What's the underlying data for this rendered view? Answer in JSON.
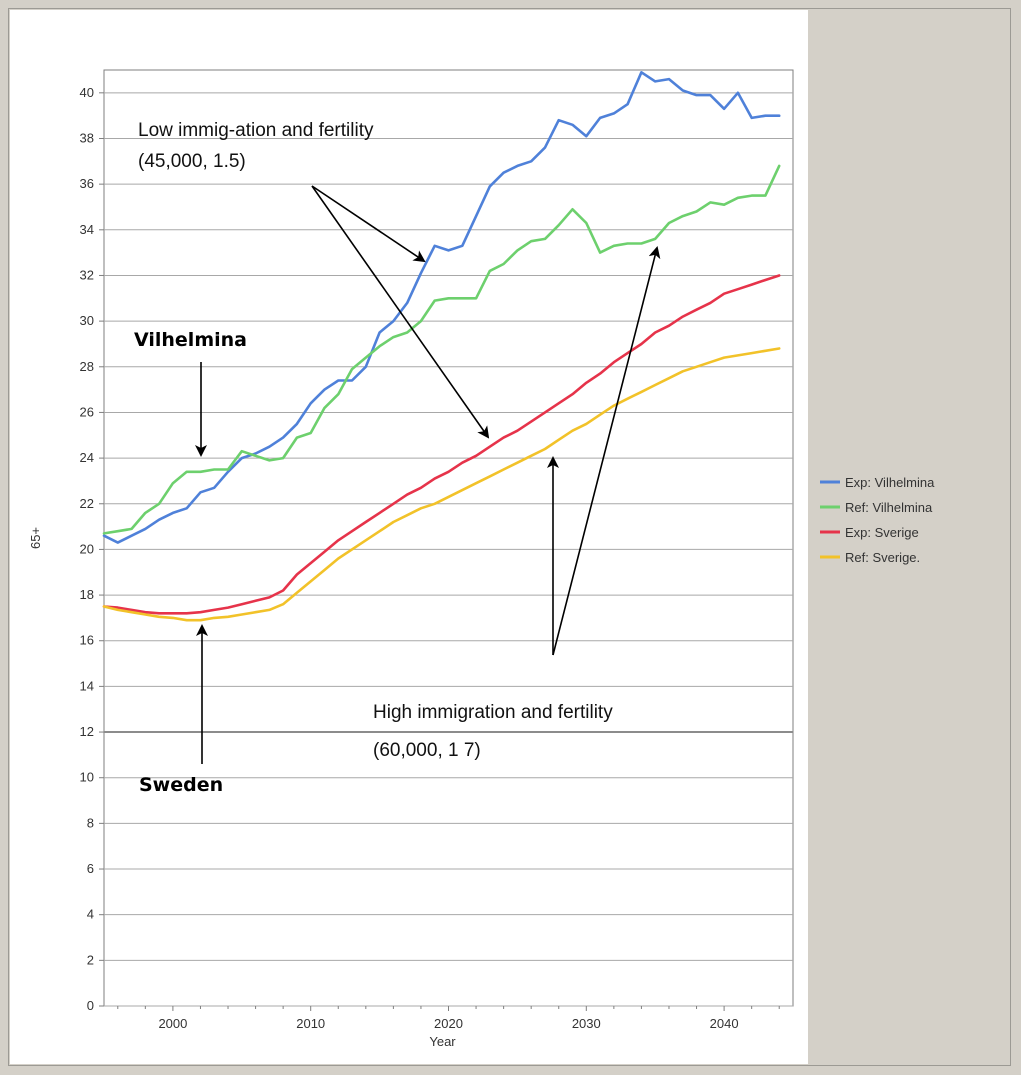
{
  "chart_data": {
    "type": "line",
    "xlabel": "Year",
    "ylabel": "65+",
    "xlim": [
      1995,
      2045
    ],
    "ylim": [
      0,
      41
    ],
    "grid": true,
    "legend_position": "right",
    "x_ticks": [
      2000,
      2010,
      2020,
      2030,
      2040
    ],
    "y_ticks": [
      0,
      2,
      4,
      6,
      8,
      10,
      12,
      14,
      16,
      18,
      20,
      22,
      24,
      26,
      28,
      30,
      32,
      34,
      36,
      38,
      40
    ],
    "x": [
      1995,
      1996,
      1997,
      1998,
      1999,
      2000,
      2001,
      2002,
      2003,
      2004,
      2005,
      2006,
      2007,
      2008,
      2009,
      2010,
      2011,
      2012,
      2013,
      2014,
      2015,
      2016,
      2017,
      2018,
      2019,
      2020,
      2021,
      2022,
      2023,
      2024,
      2025,
      2026,
      2027,
      2028,
      2029,
      2030,
      2031,
      2032,
      2033,
      2034,
      2035,
      2036,
      2037,
      2038,
      2039,
      2040,
      2041,
      2042,
      2043,
      2044
    ],
    "series": [
      {
        "name": "Exp: Vilhelmina",
        "color": "#4f81d9",
        "values": [
          20.6,
          20.3,
          20.6,
          20.9,
          21.3,
          21.6,
          21.8,
          22.5,
          22.7,
          23.4,
          24.0,
          24.2,
          24.5,
          24.9,
          25.5,
          26.4,
          27.0,
          27.4,
          27.4,
          28.0,
          29.5,
          30.0,
          30.8,
          32.1,
          33.3,
          33.1,
          33.3,
          34.6,
          35.9,
          36.5,
          36.8,
          37.0,
          37.6,
          38.8,
          38.6,
          38.1,
          38.9,
          39.1,
          39.5,
          40.9,
          40.5,
          40.6,
          40.1,
          39.9,
          39.9,
          39.3,
          40.0,
          38.9,
          39.0,
          39.0
        ]
      },
      {
        "name": "Ref: Vilhelmina",
        "color": "#6dd06d",
        "values": [
          20.7,
          20.8,
          20.9,
          21.6,
          22.0,
          22.9,
          23.4,
          23.4,
          23.5,
          23.5,
          24.3,
          24.1,
          23.9,
          24.0,
          24.9,
          25.1,
          26.2,
          26.8,
          27.9,
          28.4,
          28.9,
          29.3,
          29.5,
          30.0,
          30.9,
          31.0,
          31.0,
          31.0,
          32.2,
          32.5,
          33.1,
          33.5,
          33.6,
          34.2,
          34.9,
          34.3,
          33.0,
          33.3,
          33.4,
          33.4,
          33.6,
          34.3,
          34.6,
          34.8,
          35.2,
          35.1,
          35.4,
          35.5,
          35.5,
          36.8
        ]
      },
      {
        "name": "Exp: Sverige",
        "color": "#e6334a",
        "values": [
          17.5,
          17.45,
          17.35,
          17.25,
          17.2,
          17.2,
          17.2,
          17.25,
          17.35,
          17.45,
          17.6,
          17.75,
          17.9,
          18.2,
          18.9,
          19.4,
          19.9,
          20.4,
          20.8,
          21.2,
          21.6,
          22.0,
          22.4,
          22.7,
          23.1,
          23.4,
          23.8,
          24.1,
          24.5,
          24.9,
          25.2,
          25.6,
          26.0,
          26.4,
          26.8,
          27.3,
          27.7,
          28.2,
          28.6,
          29.0,
          29.5,
          29.8,
          30.2,
          30.5,
          30.8,
          31.2,
          31.4,
          31.6,
          31.8,
          32.0
        ]
      },
      {
        "name": "Ref: Sverige.",
        "color": "#f2c229",
        "values": [
          17.5,
          17.35,
          17.25,
          17.15,
          17.05,
          17.0,
          16.9,
          16.9,
          17.0,
          17.05,
          17.15,
          17.25,
          17.35,
          17.6,
          18.1,
          18.6,
          19.1,
          19.6,
          20.0,
          20.4,
          20.8,
          21.2,
          21.5,
          21.8,
          22.0,
          22.3,
          22.6,
          22.9,
          23.2,
          23.5,
          23.8,
          24.1,
          24.4,
          24.8,
          25.2,
          25.5,
          25.9,
          26.3,
          26.6,
          26.9,
          27.2,
          27.5,
          27.8,
          28.0,
          28.2,
          28.4,
          28.5,
          28.6,
          28.7,
          28.8
        ]
      }
    ],
    "annotations": [
      {
        "text": "Low immig-ation and fertility"
      },
      {
        "text": "(45,000, 1.5)"
      },
      {
        "text": "Vilhelmina"
      },
      {
        "text": "High immigration and fertility"
      },
      {
        "text": "(60,000, 1 7)"
      },
      {
        "text": "Sweden"
      }
    ]
  }
}
